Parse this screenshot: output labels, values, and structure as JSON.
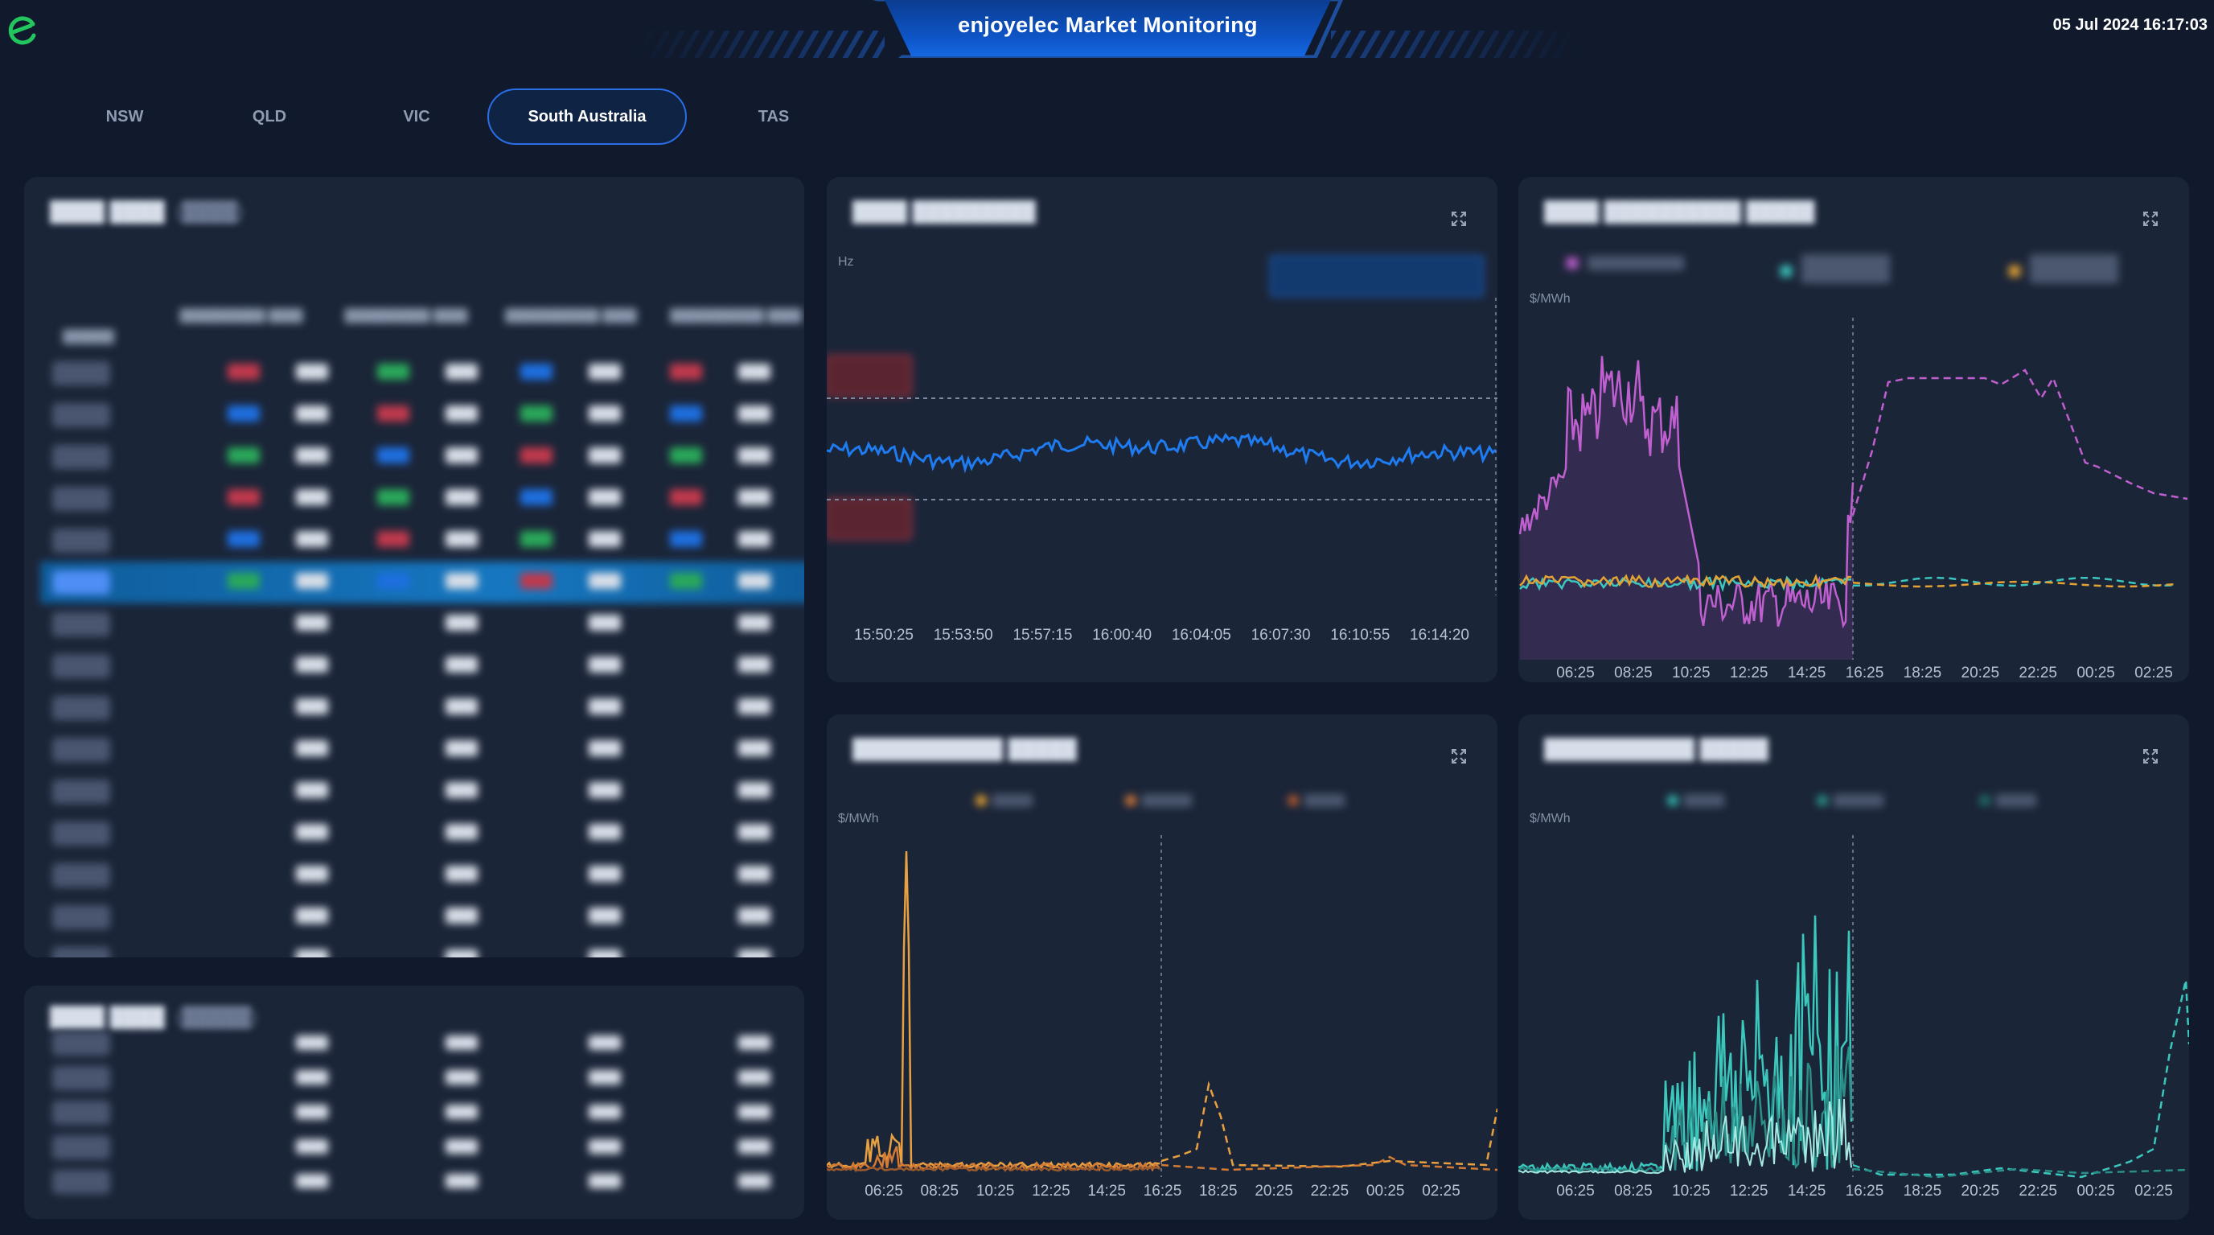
{
  "header": {
    "app_title": "enjoyelec Market Monitoring",
    "datetime": "05 Jul 2024 16:17:03",
    "logo_icon": "enjoyelec-logo-icon",
    "brand_color": "#22c55e",
    "accent_color": "#1568e3"
  },
  "tabs": [
    {
      "label": "NSW",
      "active": false
    },
    {
      "label": "QLD",
      "active": false
    },
    {
      "label": "VIC",
      "active": false
    },
    {
      "label": "South Australia",
      "active": true
    },
    {
      "label": "TAS",
      "active": false
    }
  ],
  "panels": {
    "grid_frequency": {
      "unit": "Hz",
      "x_ticks": [
        "15:50:25",
        "15:53:50",
        "15:57:15",
        "16:00:40",
        "16:04:05",
        "16:07:30",
        "16:10:55",
        "16:14:20"
      ]
    },
    "fcas_regulation": {
      "unit": "$/MWh",
      "x_ticks": [
        "06:25",
        "08:25",
        "10:25",
        "12:25",
        "14:25",
        "16:25",
        "18:25",
        "20:25",
        "22:25",
        "00:25",
        "02:25"
      ]
    },
    "contingency_raise": {
      "unit": "$/MWh",
      "x_ticks": [
        "06:25",
        "08:25",
        "10:25",
        "12:25",
        "14:25",
        "16:25",
        "18:25",
        "20:25",
        "22:25",
        "00:25",
        "02:25"
      ]
    },
    "contingency_lower": {
      "unit": "$/MWh",
      "x_ticks": [
        "06:25",
        "08:25",
        "10:25",
        "12:25",
        "14:25",
        "16:25",
        "18:25",
        "20:25",
        "22:25",
        "00:25",
        "02:25"
      ]
    }
  },
  "colors": {
    "frequency_line": "#1e7bf0",
    "energy_price": "#c05fd0",
    "fcas_lower": "#3cc7c0",
    "fcas_raise": "#e3a233",
    "raise_series": "#e88f3a",
    "lower_series": "#34b6ad"
  }
}
